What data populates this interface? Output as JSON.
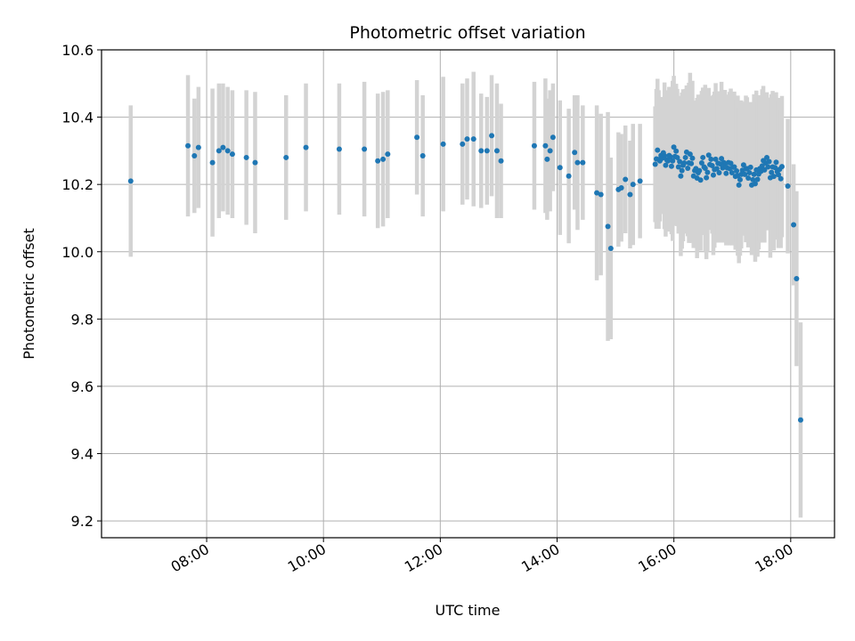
{
  "chart_data": {
    "type": "scatter",
    "title": "Photometric offset variation",
    "xlabel": "UTC time",
    "ylabel": "Photometric offset",
    "x_unit": "hours (UTC)",
    "xlim": [
      6.2,
      18.75
    ],
    "ylim": [
      9.15,
      10.6
    ],
    "x_ticks": [
      8,
      10,
      12,
      14,
      16,
      18
    ],
    "x_tick_labels": [
      "08:00",
      "10:00",
      "12:00",
      "14:00",
      "16:00",
      "18:00"
    ],
    "y_ticks": [
      9.2,
      9.4,
      9.6,
      9.8,
      10.0,
      10.2,
      10.4,
      10.6
    ],
    "y_tick_labels": [
      "9.2",
      "9.4",
      "9.6",
      "9.8",
      "10.0",
      "10.2",
      "10.4",
      "10.6"
    ],
    "grid": true,
    "colors": {
      "point": "#1f77b4",
      "errorbar": "#d3d3d3",
      "grid": "#b0b0b0"
    },
    "series": [
      {
        "name": "",
        "x": [
          6.7,
          7.68,
          7.79,
          7.86,
          8.1,
          8.21,
          8.28,
          8.36,
          8.44,
          8.68,
          8.83,
          9.36,
          9.7,
          10.27,
          10.7,
          10.93,
          11.02,
          11.1,
          11.6,
          11.7,
          12.05,
          12.38,
          12.46,
          12.57,
          12.7,
          12.8,
          12.88,
          12.97,
          13.04,
          13.61,
          13.8,
          13.83,
          13.88,
          13.93,
          14.05,
          14.2,
          14.3,
          14.35,
          14.44,
          14.68,
          14.75,
          14.87,
          14.92,
          15.05,
          15.1,
          15.17,
          15.25,
          15.3,
          15.42
        ],
        "y": [
          10.21,
          10.315,
          10.285,
          10.31,
          10.265,
          10.3,
          10.31,
          10.3,
          10.29,
          10.28,
          10.265,
          10.28,
          10.31,
          10.305,
          10.305,
          10.27,
          10.275,
          10.29,
          10.34,
          10.285,
          10.32,
          10.32,
          10.335,
          10.335,
          10.3,
          10.3,
          10.345,
          10.3,
          10.27,
          10.315,
          10.315,
          10.275,
          10.3,
          10.34,
          10.25,
          10.225,
          10.295,
          10.265,
          10.265,
          10.175,
          10.17,
          10.075,
          10.01,
          10.185,
          10.19,
          10.215,
          10.17,
          10.2,
          10.21
        ],
        "err": [
          0.225,
          0.21,
          0.17,
          0.18,
          0.22,
          0.2,
          0.19,
          0.19,
          0.19,
          0.2,
          0.21,
          0.185,
          0.19,
          0.195,
          0.2,
          0.2,
          0.2,
          0.19,
          0.17,
          0.18,
          0.2,
          0.18,
          0.18,
          0.2,
          0.17,
          0.16,
          0.18,
          0.2,
          0.17,
          0.19,
          0.2,
          0.18,
          0.18,
          0.16,
          0.2,
          0.2,
          0.17,
          0.2,
          0.17,
          0.26,
          0.24,
          0.34,
          0.27,
          0.17,
          0.16,
          0.16,
          0.16,
          0.18,
          0.17
        ]
      },
      {
        "name": "",
        "x_range": [
          15.68,
          17.85
        ],
        "y_center": 10.25,
        "count": 110,
        "x": [
          15.68,
          15.72,
          15.76,
          15.8,
          15.86,
          15.9,
          15.95,
          16.02,
          16.08,
          16.14,
          16.2,
          16.25,
          16.3,
          16.35,
          16.4,
          16.45,
          16.5,
          16.56,
          16.62,
          16.68,
          16.75,
          16.82,
          16.9,
          16.98,
          17.05,
          17.12,
          17.2,
          17.28,
          17.36,
          17.44,
          17.52,
          17.6,
          17.68,
          17.75,
          17.82,
          17.86
        ],
        "y": [
          10.28,
          10.29,
          10.27,
          10.29,
          10.265,
          10.29,
          10.27,
          10.295,
          10.26,
          10.245,
          10.28,
          10.26,
          10.27,
          10.245,
          10.235,
          10.225,
          10.26,
          10.24,
          10.275,
          10.24,
          10.255,
          10.265,
          10.245,
          10.255,
          10.24,
          10.21,
          10.25,
          10.235,
          10.21,
          10.235,
          10.255,
          10.26,
          10.24,
          10.25,
          10.225,
          10.245
        ],
        "err": [
          0.19,
          0.2,
          0.18,
          0.17,
          0.2,
          0.21,
          0.22,
          0.2,
          0.21,
          0.22,
          0.21,
          0.22,
          0.23,
          0.22,
          0.22,
          0.21,
          0.22,
          0.23,
          0.2,
          0.22,
          0.22,
          0.21,
          0.22,
          0.21,
          0.23,
          0.22,
          0.2,
          0.2,
          0.22,
          0.23,
          0.21,
          0.2,
          0.22,
          0.22,
          0.2,
          0.21
        ]
      },
      {
        "name": "",
        "x": [
          17.95,
          18.05,
          18.1,
          18.17
        ],
        "y": [
          10.195,
          10.08,
          9.92,
          9.5
        ],
        "err": [
          0.2,
          0.18,
          0.26,
          0.29
        ]
      }
    ]
  }
}
